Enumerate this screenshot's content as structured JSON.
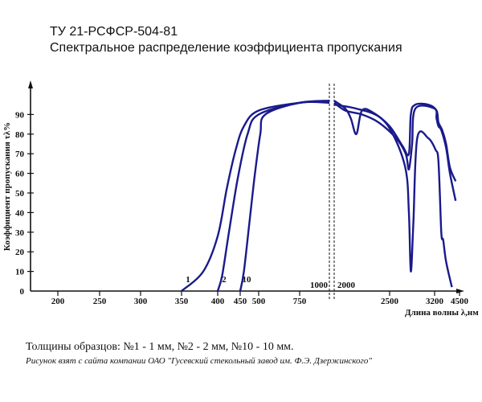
{
  "header": {
    "line1": "ТУ 21-РСФСР-504-81",
    "line2": "Спектральное распределение коэффициента пропускания"
  },
  "captions": {
    "line1": "Толщины образцов: №1 - 1 мм, №2 - 2 мм, №10 - 10 мм.",
    "line2": "Рисунок взят с сайта компании ОАО \"Гусевский стекольный завод им. Ф.Э. Дзержинского\""
  },
  "chart_data": {
    "type": "line",
    "ylabel": "Коэффициент пропускания τλ%",
    "xlabel": "Длина волны λ,нм",
    "ylim": [
      0,
      100
    ],
    "y_ticks": [
      "0",
      "10",
      "20",
      "30",
      "40",
      "50",
      "60",
      "70",
      "80",
      "90"
    ],
    "x_ticks_left": [
      "200",
      "250",
      "300",
      "350",
      "400",
      "450",
      "500",
      "750"
    ],
    "break_labels": [
      "1000",
      "2000"
    ],
    "x_ticks_right": [
      "2500",
      "3200",
      "4500"
    ],
    "curve_color": "#1a1a8c",
    "series": [
      {
        "name": "1",
        "left": [
          [
            350,
            0
          ],
          [
            380,
            10
          ],
          [
            400,
            28
          ],
          [
            420,
            52
          ],
          [
            440,
            72
          ],
          [
            460,
            84
          ],
          [
            500,
            92
          ],
          [
            750,
            96
          ],
          [
            1000,
            97
          ]
        ],
        "right": [
          [
            2000,
            97
          ],
          [
            2100,
            93
          ],
          [
            2150,
            88
          ],
          [
            2200,
            80
          ],
          [
            2250,
            92
          ],
          [
            2350,
            91
          ],
          [
            2500,
            84
          ],
          [
            2700,
            74
          ],
          [
            2800,
            70
          ],
          [
            2830,
            90
          ],
          [
            2900,
            95
          ],
          [
            3100,
            95
          ],
          [
            3300,
            92
          ],
          [
            3400,
            86
          ],
          [
            3600,
            82
          ],
          [
            3800,
            75
          ],
          [
            4000,
            63
          ],
          [
            4300,
            56
          ]
        ]
      },
      {
        "name": "2",
        "left": [
          [
            400,
            0
          ],
          [
            410,
            8
          ],
          [
            425,
            30
          ],
          [
            445,
            58
          ],
          [
            470,
            80
          ],
          [
            500,
            90
          ],
          [
            750,
            96
          ],
          [
            1000,
            97
          ]
        ],
        "right": [
          [
            2000,
            96
          ],
          [
            2100,
            92
          ],
          [
            2250,
            90
          ],
          [
            2400,
            86
          ],
          [
            2600,
            78
          ],
          [
            2750,
            70
          ],
          [
            2800,
            62
          ],
          [
            2850,
            75
          ],
          [
            2900,
            93
          ],
          [
            3200,
            93
          ],
          [
            3300,
            88
          ],
          [
            3400,
            84
          ],
          [
            3550,
            82
          ],
          [
            3800,
            73
          ],
          [
            4000,
            60
          ],
          [
            4300,
            46
          ]
        ]
      },
      {
        "name": "10",
        "left": [
          [
            450,
            0
          ],
          [
            460,
            10
          ],
          [
            475,
            35
          ],
          [
            490,
            60
          ],
          [
            510,
            80
          ],
          [
            540,
            90
          ],
          [
            750,
            96
          ],
          [
            1000,
            96
          ]
        ],
        "right": [
          [
            2000,
            95
          ],
          [
            2200,
            93
          ],
          [
            2400,
            89
          ],
          [
            2550,
            80
          ],
          [
            2750,
            62
          ],
          [
            2800,
            40
          ],
          [
            2830,
            10
          ],
          [
            2870,
            35
          ],
          [
            2930,
            78
          ],
          [
            3100,
            78
          ],
          [
            3250,
            72
          ],
          [
            3400,
            66
          ],
          [
            3550,
            30
          ],
          [
            3650,
            26
          ],
          [
            3800,
            15
          ],
          [
            4100,
            2
          ]
        ]
      }
    ]
  }
}
